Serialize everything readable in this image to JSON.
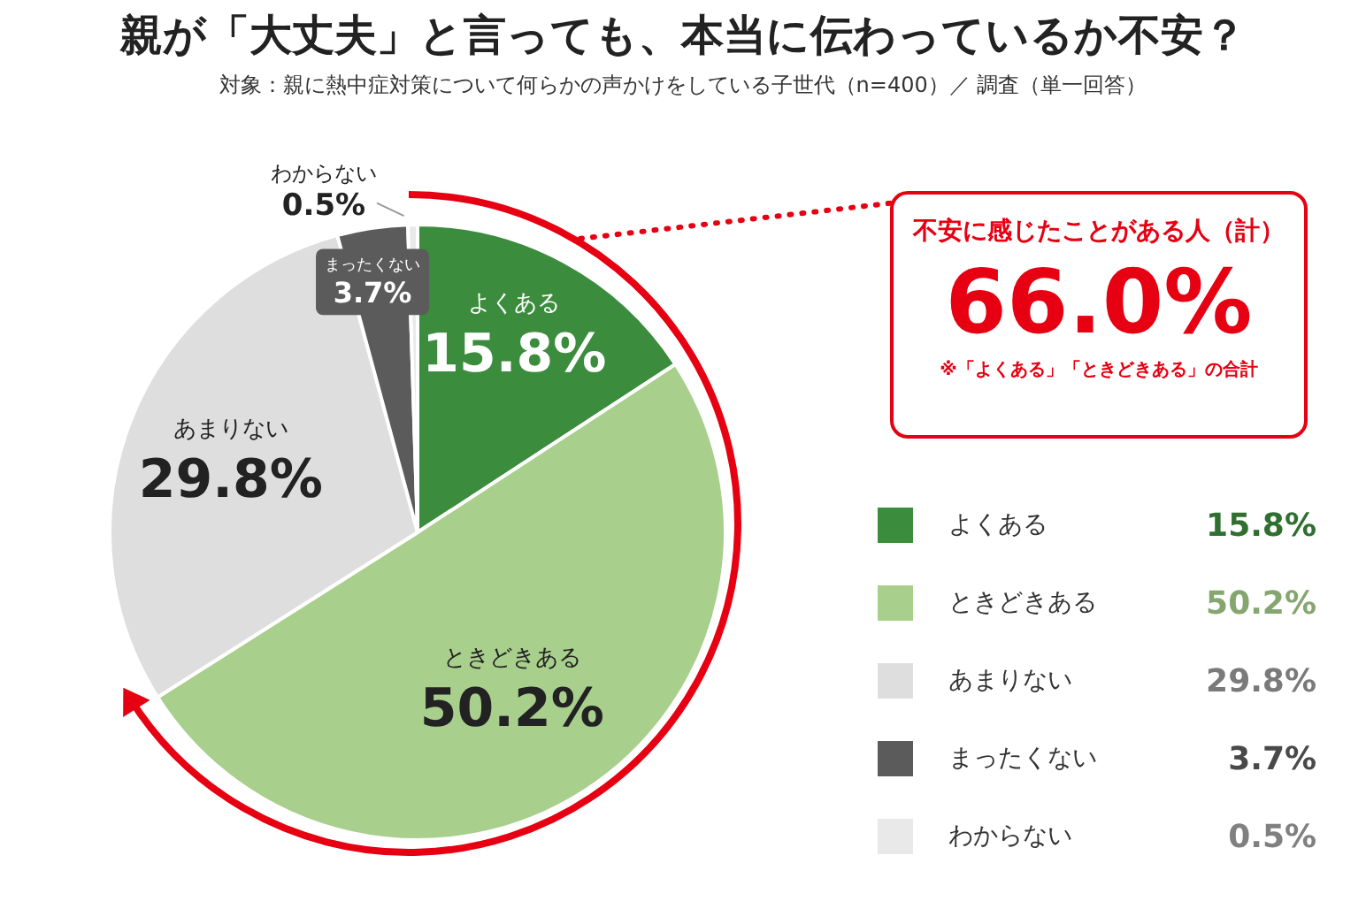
{
  "chart_data": {
    "type": "pie",
    "title": "親が「大丈夫」と言っても、本当に伝わっているか不安？",
    "subtitle": "対象：親に熱中症対策について何らかの声かけをしている子世代（n=400）／ 調査（単一回答）",
    "categories": [
      "よくある",
      "ときどきある",
      "あまりない",
      "まったくない",
      "わからない"
    ],
    "values": [
      15.8,
      50.2,
      29.8,
      3.7,
      0.5
    ],
    "colors": [
      "#3b8c3c",
      "#a8cf8c",
      "#dedede",
      "#5b5b5b",
      "#e9e9e9"
    ],
    "value_labels": [
      "15.8%",
      "50.2%",
      "29.8%",
      "3.7%",
      "0.5%"
    ],
    "legend": "right",
    "annotations": [
      "不安に感じたことがある人（計）",
      "66.0%",
      "※「よくある」「ときどきある」の合計"
    ]
  }
}
